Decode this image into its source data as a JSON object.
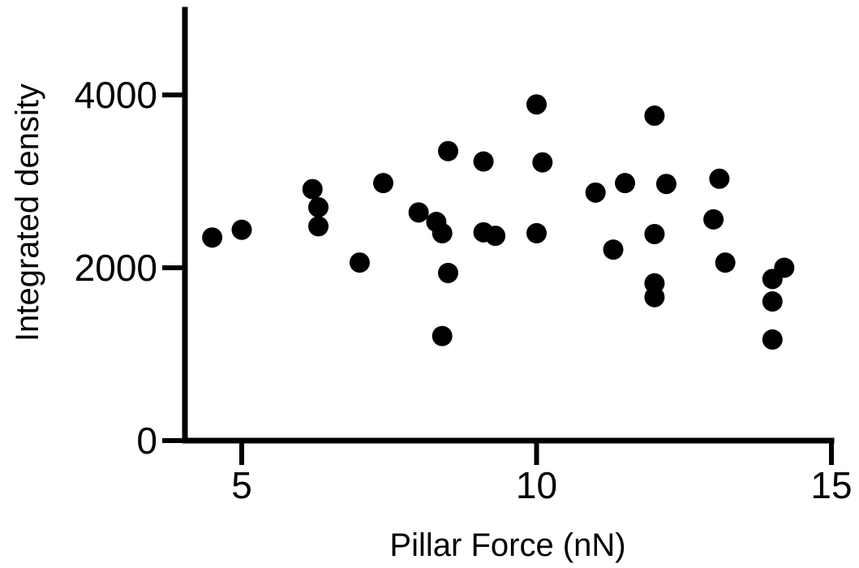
{
  "chart_data": {
    "type": "scatter",
    "title": "",
    "xlabel": "Pillar Force (nN)",
    "ylabel": "Integrated density",
    "xlim": [
      4,
      15
    ],
    "ylim": [
      0,
      5000
    ],
    "x_ticks": [
      5,
      10,
      15
    ],
    "x_tick_labels": [
      "5",
      "10",
      "15"
    ],
    "y_ticks": [
      0,
      2000,
      4000
    ],
    "y_tick_labels": [
      "0",
      "2000",
      "4000"
    ],
    "grid": false,
    "legend": "none",
    "marker_color": "#000000",
    "points": [
      {
        "x": 4.5,
        "y": 2350
      },
      {
        "x": 5.0,
        "y": 2440
      },
      {
        "x": 6.2,
        "y": 2910
      },
      {
        "x": 6.3,
        "y": 2700
      },
      {
        "x": 6.3,
        "y": 2480
      },
      {
        "x": 7.0,
        "y": 2060
      },
      {
        "x": 7.4,
        "y": 2980
      },
      {
        "x": 8.0,
        "y": 2640
      },
      {
        "x": 8.3,
        "y": 2530
      },
      {
        "x": 8.4,
        "y": 2400
      },
      {
        "x": 8.4,
        "y": 1210
      },
      {
        "x": 8.5,
        "y": 3350
      },
      {
        "x": 8.5,
        "y": 1940
      },
      {
        "x": 9.1,
        "y": 3230
      },
      {
        "x": 9.1,
        "y": 2410
      },
      {
        "x": 9.3,
        "y": 2370
      },
      {
        "x": 10.0,
        "y": 3890
      },
      {
        "x": 10.0,
        "y": 2400
      },
      {
        "x": 10.1,
        "y": 3220
      },
      {
        "x": 11.0,
        "y": 2870
      },
      {
        "x": 11.3,
        "y": 2210
      },
      {
        "x": 11.5,
        "y": 2980
      },
      {
        "x": 12.0,
        "y": 3760
      },
      {
        "x": 12.0,
        "y": 2390
      },
      {
        "x": 12.0,
        "y": 1820
      },
      {
        "x": 12.0,
        "y": 1660
      },
      {
        "x": 12.2,
        "y": 2970
      },
      {
        "x": 13.0,
        "y": 2560
      },
      {
        "x": 13.1,
        "y": 3030
      },
      {
        "x": 13.2,
        "y": 2060
      },
      {
        "x": 14.0,
        "y": 1870
      },
      {
        "x": 14.0,
        "y": 1610
      },
      {
        "x": 14.0,
        "y": 1170
      },
      {
        "x": 14.2,
        "y": 2000
      }
    ]
  }
}
